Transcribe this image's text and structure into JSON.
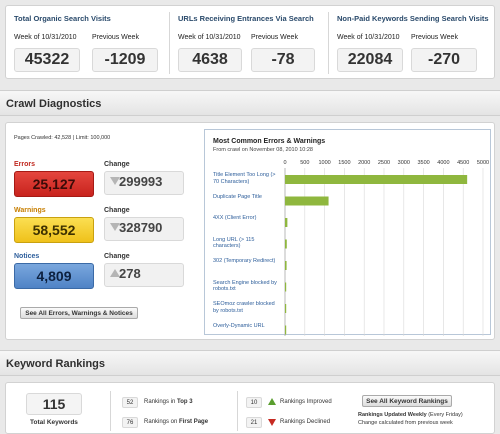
{
  "top_stats": [
    {
      "title": "Total Organic Search Visits",
      "col1_label": "Week of 10/31/2010",
      "col1_value": "45322",
      "col2_label": "Previous Week",
      "col2_value": "-1209"
    },
    {
      "title": "URLs Receiving Entrances Via Search",
      "col1_label": "Week of 10/31/2010",
      "col1_value": "4638",
      "col2_label": "Previous Week",
      "col2_value": "-78"
    },
    {
      "title": "Non-Paid Keywords Sending Search Visits",
      "col1_label": "Week of 10/31/2010",
      "col1_value": "22084",
      "col2_label": "Previous Week",
      "col2_value": "-270"
    }
  ],
  "crawl": {
    "section_title": "Crawl Diagnostics",
    "pages_crawled": "Pages Crawled: 42,528 | Limit: 100,000",
    "errors": {
      "label": "Errors",
      "value": "25,127",
      "change_label": "Change",
      "change_value": "299993",
      "direction": "down"
    },
    "warnings": {
      "label": "Warnings",
      "value": "58,552",
      "change_label": "Change",
      "change_value": "328790",
      "direction": "down"
    },
    "notices": {
      "label": "Notices",
      "value": "4,809",
      "change_label": "Change",
      "change_value": "278",
      "direction": "up"
    },
    "see_all_button": "See All Errors, Warnings & Notices",
    "colors": {
      "errors": "#d9302b",
      "warnings": "#f3c824",
      "notices": "#5b8fd0",
      "bar": "#8fb73e"
    }
  },
  "chart_data": {
    "type": "bar",
    "orientation": "horizontal",
    "title": "Most Common Errors & Warnings",
    "subtitle": "From crawl on November 08, 2010 10:28",
    "categories": [
      "Title Element Too Long (> 70 Characters)",
      "Duplicate Page Title",
      "4XX (Client Error)",
      "Long URL (> 115 characters)",
      "302 (Temporary Redirect)",
      "Search Engine blocked by robots.txt",
      "SEOmoz crawler blocked by robots.txt",
      "Overly-Dynamic URL"
    ],
    "values": [
      4600,
      1100,
      60,
      45,
      40,
      30,
      25,
      10
    ],
    "xticks": [
      "0",
      "500",
      "1000",
      "1500",
      "2000",
      "2500",
      "3000",
      "3500",
      "4000",
      "4500",
      "5000"
    ],
    "xlim": [
      0,
      5000
    ],
    "grid": true,
    "legend": "none"
  },
  "keywords": {
    "section_title": "Keyword Rankings",
    "total_value": "115",
    "total_label": "Total Keywords",
    "top3_count": "52",
    "top3_prefix": "Rankings in ",
    "top3_emph": "Top 3",
    "first_page_count": "76",
    "first_page_prefix": "Rankings on ",
    "first_page_emph": "First Page",
    "improved_count": "10",
    "improved_label": "Rankings Improved",
    "declined_count": "21",
    "declined_label": "Rankings Declined",
    "see_all_button": "See All Keyword Rankings",
    "updated_bold": "Rankings Updated Weekly",
    "updated_rest": " (Every Friday)",
    "change_note": "Change calculated from previous week"
  }
}
